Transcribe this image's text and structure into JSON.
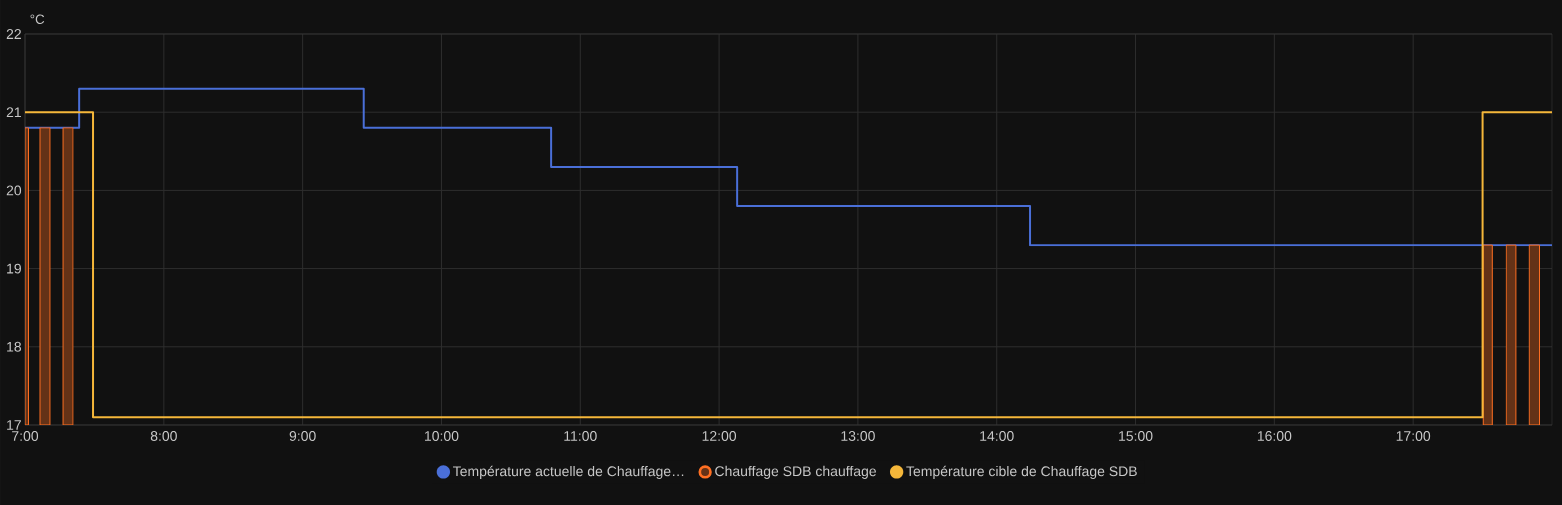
{
  "chart_data": {
    "type": "step",
    "ylabel": "°C",
    "xlim": [
      7,
      18
    ],
    "ylim": [
      17,
      22
    ],
    "xticks": [
      {
        "value": 7,
        "label": "7:00"
      },
      {
        "value": 8,
        "label": "8:00"
      },
      {
        "value": 9,
        "label": "9:00"
      },
      {
        "value": 10,
        "label": "10:00"
      },
      {
        "value": 11,
        "label": "11:00"
      },
      {
        "value": 12,
        "label": "12:00"
      },
      {
        "value": 13,
        "label": "13:00"
      },
      {
        "value": 14,
        "label": "14:00"
      },
      {
        "value": 15,
        "label": "15:00"
      },
      {
        "value": 16,
        "label": "16:00"
      },
      {
        "value": 17,
        "label": "17:00"
      }
    ],
    "yticks": [
      17,
      18,
      19,
      20,
      21,
      22
    ],
    "grid": true,
    "legend": "bottom",
    "series": [
      {
        "name": "Température actuelle de Chauffage…",
        "color": "#4a6fd8",
        "x": [
          7,
          7.39,
          9.44,
          10.79,
          12.13,
          14.24,
          18
        ],
        "values": [
          20.8,
          21.3,
          20.8,
          20.3,
          19.8,
          19.3,
          19.3
        ]
      },
      {
        "name": "Chauffage SDB chauffage",
        "type": "area",
        "color": "#ff6f22",
        "x": [
          7.0,
          7.025,
          7.06,
          7.108,
          7.18,
          7.23,
          7.274,
          7.346,
          17.4,
          17.505,
          17.57,
          17.62,
          17.67,
          17.74,
          17.79,
          17.836,
          17.91
        ],
        "values": [
          20.8,
          20.8,
          null,
          20.8,
          20.8,
          null,
          20.8,
          20.8,
          null,
          19.3,
          19.3,
          null,
          19.3,
          19.3,
          null,
          19.3,
          19.3
        ]
      },
      {
        "name": "Température cible de Chauffage SDB",
        "color": "#f5b73a",
        "x": [
          7,
          7.49,
          17.5,
          18
        ],
        "values": [
          21,
          17.1,
          21,
          21
        ]
      }
    ]
  }
}
